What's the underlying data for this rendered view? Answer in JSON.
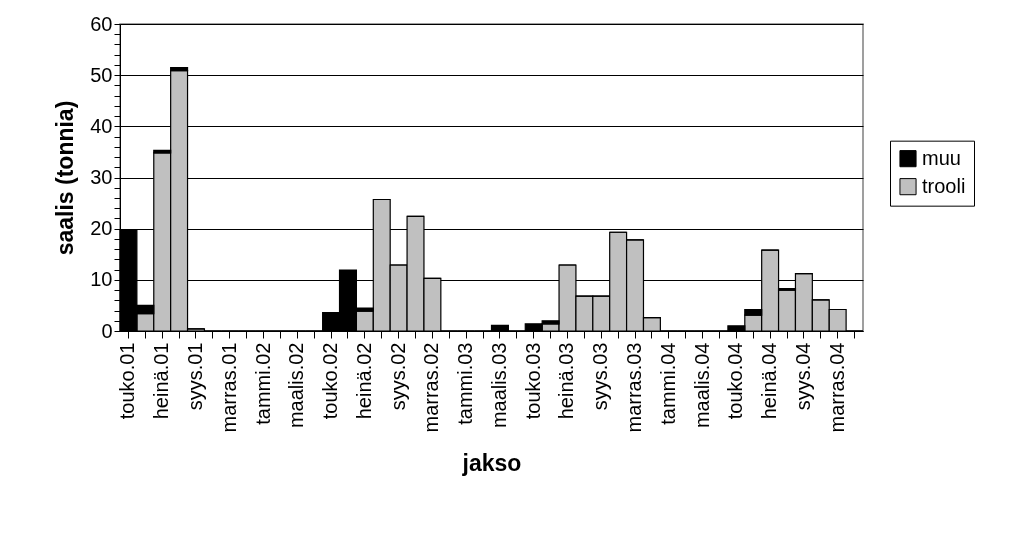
{
  "chart_data": {
    "type": "bar",
    "stacked": true,
    "xlabel": "jakso",
    "ylabel": "saalis (tonnia)",
    "categories": [
      "touko.01",
      null,
      "heinä.01",
      null,
      "syys.01",
      null,
      "marras.01",
      null,
      "tammi.02",
      null,
      "maalis.02",
      null,
      "touko.02",
      null,
      "heinä.02",
      null,
      "syys.02",
      null,
      "marras.02",
      null,
      "tammi.03",
      null,
      "maalis.03",
      null,
      "touko.03",
      null,
      "heinä.03",
      null,
      "syys.03",
      null,
      "marras.03",
      null,
      "tammi.04",
      null,
      "maalis.04",
      null,
      "touko.04",
      null,
      "heinä.04",
      null,
      "syys.04",
      null,
      "marras.04",
      null
    ],
    "series": [
      {
        "name": "trooli",
        "color": "#c0c0c0",
        "values": [
          0,
          3.4,
          34.8,
          50.9,
          0.4,
          0,
          0,
          0,
          0,
          0,
          0,
          0,
          0,
          0,
          3.9,
          25.7,
          12.9,
          22.4,
          10.3,
          0,
          0,
          0,
          0,
          0,
          0,
          1.4,
          12.9,
          6.8,
          6.8,
          19.3,
          17.8,
          2.6,
          0,
          0,
          0,
          0,
          0,
          3.1,
          15.8,
          8.0,
          11.2,
          6.1,
          4.2,
          0
        ]
      },
      {
        "name": "muu",
        "color": "#000000",
        "values": [
          19.8,
          1.6,
          0.5,
          0.6,
          0,
          0,
          0,
          0,
          0,
          0,
          0,
          0,
          3.6,
          11.9,
          0.6,
          0,
          0,
          0,
          0,
          0,
          0,
          0,
          1.1,
          0,
          1.4,
          0.6,
          0,
          0,
          0,
          0,
          0,
          0,
          0,
          0,
          0,
          0,
          1.0,
          1.1,
          0,
          0.3,
          0,
          0,
          0,
          0
        ]
      }
    ],
    "ylim": [
      0,
      60
    ],
    "yticks": [
      0,
      {
        "value": 2,
        "label": null
      },
      {
        "value": 4,
        "label": null
      },
      {
        "value": 6,
        "label": null
      },
      {
        "value": 8,
        "label": null
      },
      10,
      {
        "value": 12,
        "label": null
      },
      {
        "value": 14,
        "label": null
      },
      {
        "value": 16,
        "label": null
      },
      {
        "value": 18,
        "label": null
      },
      20,
      {
        "value": 22,
        "label": null
      },
      {
        "value": 24,
        "label": null
      },
      {
        "value": 26,
        "label": null
      },
      {
        "value": 28,
        "label": null
      },
      30,
      {
        "value": 32,
        "label": null
      },
      {
        "value": 34,
        "label": null
      },
      {
        "value": 36,
        "label": null
      },
      {
        "value": 38,
        "label": null
      },
      40,
      {
        "value": 42,
        "label": null
      },
      {
        "value": 44,
        "label": null
      },
      {
        "value": 46,
        "label": null
      },
      {
        "value": 48,
        "label": null
      },
      50,
      {
        "value": 52,
        "label": null
      },
      {
        "value": 54,
        "label": null
      },
      {
        "value": 56,
        "label": null
      },
      {
        "value": 58,
        "label": null
      },
      60
    ],
    "grid": "y",
    "legend": "right"
  }
}
